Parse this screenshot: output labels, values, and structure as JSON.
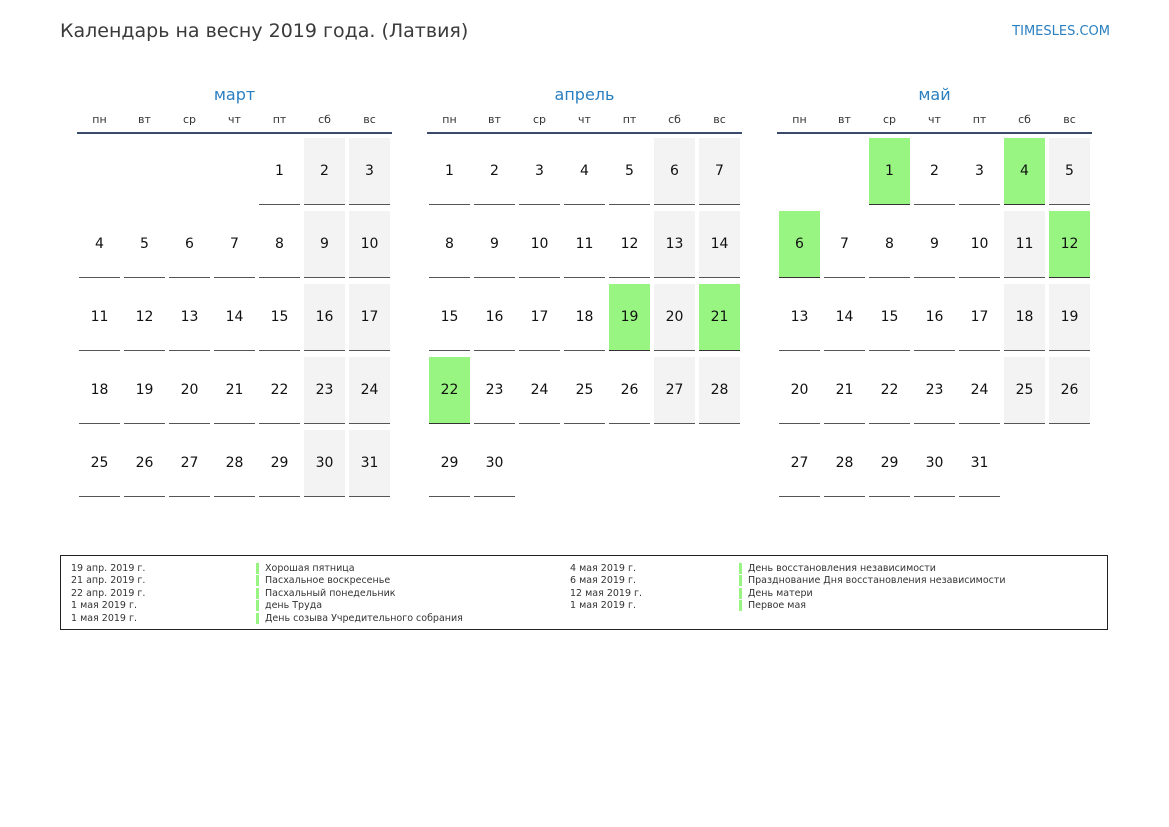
{
  "header": {
    "title": "Календарь на весну 2019 года. (Латвия)",
    "site": "TIMESLES.COM"
  },
  "colors": {
    "accent": "#2a7fc0",
    "holiday": "#98f582",
    "weekend": "#f3f3f3"
  },
  "weekdays": [
    "пн",
    "вт",
    "ср",
    "чт",
    "пт",
    "сб",
    "вс"
  ],
  "months": [
    {
      "name": "март",
      "weeks": [
        [
          "",
          "",
          "",
          "",
          "1",
          "2",
          "3"
        ],
        [
          "4",
          "5",
          "6",
          "7",
          "8",
          "9",
          "10"
        ],
        [
          "11",
          "12",
          "13",
          "14",
          "15",
          "16",
          "17"
        ],
        [
          "18",
          "19",
          "20",
          "21",
          "22",
          "23",
          "24"
        ],
        [
          "25",
          "26",
          "27",
          "28",
          "29",
          "30",
          "31"
        ]
      ],
      "holidays": []
    },
    {
      "name": "апрель",
      "weeks": [
        [
          "1",
          "2",
          "3",
          "4",
          "5",
          "6",
          "7"
        ],
        [
          "8",
          "9",
          "10",
          "11",
          "12",
          "13",
          "14"
        ],
        [
          "15",
          "16",
          "17",
          "18",
          "19",
          "20",
          "21"
        ],
        [
          "22",
          "23",
          "24",
          "25",
          "26",
          "27",
          "28"
        ],
        [
          "29",
          "30",
          "",
          "",
          "",
          "",
          ""
        ]
      ],
      "holidays": [
        "19",
        "21",
        "22"
      ]
    },
    {
      "name": "май",
      "weeks": [
        [
          "",
          "",
          "1",
          "2",
          "3",
          "4",
          "5"
        ],
        [
          "6",
          "7",
          "8",
          "9",
          "10",
          "11",
          "12"
        ],
        [
          "13",
          "14",
          "15",
          "16",
          "17",
          "18",
          "19"
        ],
        [
          "20",
          "21",
          "22",
          "23",
          "24",
          "25",
          "26"
        ],
        [
          "27",
          "28",
          "29",
          "30",
          "31",
          "",
          ""
        ]
      ],
      "holidays": [
        "1",
        "4",
        "6",
        "12"
      ]
    }
  ],
  "legend": {
    "left": [
      {
        "date": "19 апр. 2019 г.",
        "name": "Хорошая пятница"
      },
      {
        "date": "21 апр. 2019 г.",
        "name": "Пасхальное воскресенье"
      },
      {
        "date": "22 апр. 2019 г.",
        "name": "Пасхальный понедельник"
      },
      {
        "date": "1 мая 2019 г.",
        "name": "день Труда"
      },
      {
        "date": "1 мая 2019 г.",
        "name": "День созыва Учредительного собрания"
      }
    ],
    "right": [
      {
        "date": "4 мая 2019 г.",
        "name": "День восстановления независимости"
      },
      {
        "date": "6 мая 2019 г.",
        "name": "Празднование Дня восстановления независимости"
      },
      {
        "date": "12 мая 2019 г.",
        "name": "День матери"
      },
      {
        "date": "1 мая 2019 г.",
        "name": "Первое мая"
      }
    ]
  }
}
